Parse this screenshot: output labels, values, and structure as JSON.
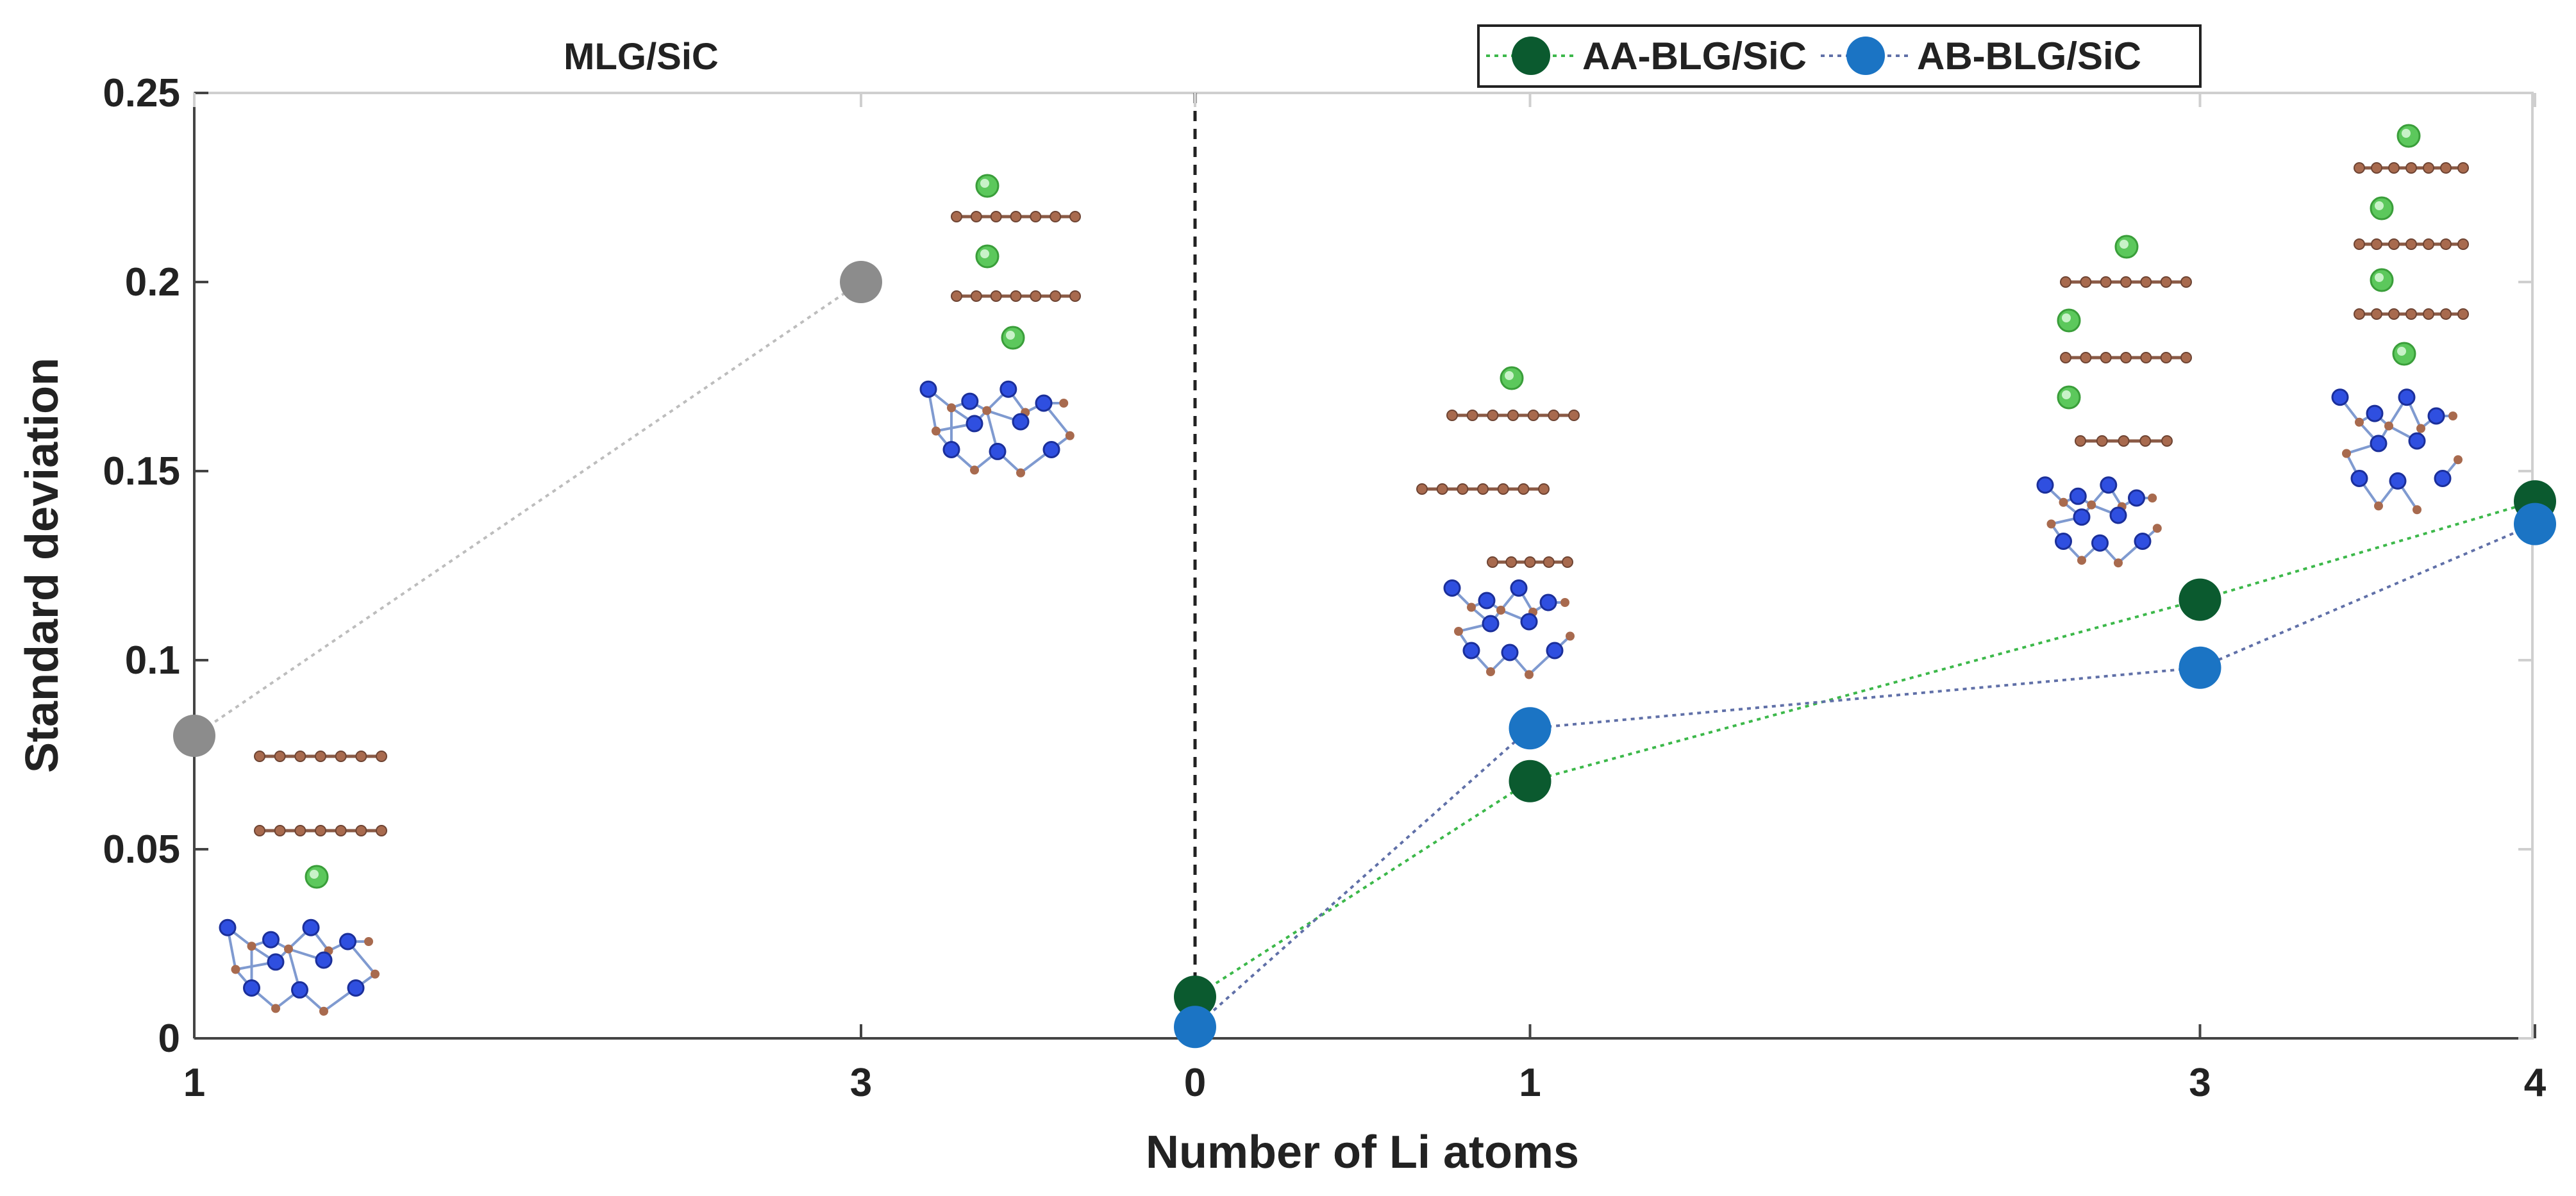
{
  "chart_data": {
    "type": "scatter",
    "xlabel": "Number of Li atoms",
    "ylabel": "Standard deviation",
    "ylim": [
      0,
      0.25
    ],
    "y_ticks": [
      0,
      0.05,
      0.1,
      0.15,
      0.2,
      0.25
    ],
    "y_tick_labels": [
      "0",
      "0.05",
      "0.1",
      "0.15",
      "0.2",
      "0.25"
    ],
    "grid": false,
    "panels": [
      {
        "name": "MLG/SiC",
        "title": "MLG/SiC",
        "x_ticks": [
          "1",
          "3"
        ],
        "series": [
          {
            "name": "MLG/SiC",
            "x": [
              1,
              3
            ],
            "values": [
              0.08,
              0.2
            ],
            "color": "#8c8c8c",
            "line_color": "#bdbdbd"
          }
        ]
      },
      {
        "name": "BLG/SiC",
        "x_ticks": [
          "0",
          "1",
          "3",
          "4"
        ],
        "series": [
          {
            "name": "AA-BLG/SiC",
            "x": [
              0,
              1,
              3,
              4
            ],
            "values": [
              0.011,
              0.068,
              0.116,
              0.142
            ],
            "color": "#0b5a2f",
            "line_color": "#3cb84a"
          },
          {
            "name": "AB-BLG/SiC",
            "x": [
              0,
              1,
              3,
              4
            ],
            "values": [
              0.003,
              0.082,
              0.098,
              0.136
            ],
            "color": "#1b74c4",
            "line_color": "#6070a8"
          }
        ]
      }
    ],
    "legend": {
      "position": "top-right",
      "entries": [
        "AA-BLG/SiC",
        "AB-BLG/SiC"
      ]
    },
    "divider": {
      "x_label": "0",
      "style": "dashed"
    }
  },
  "colors": {
    "li_atom": "#5cc85c",
    "carbon_atom": "#a86a4e",
    "silicon_atom": "#2f4fe0",
    "bond": "#7f9ad0"
  }
}
